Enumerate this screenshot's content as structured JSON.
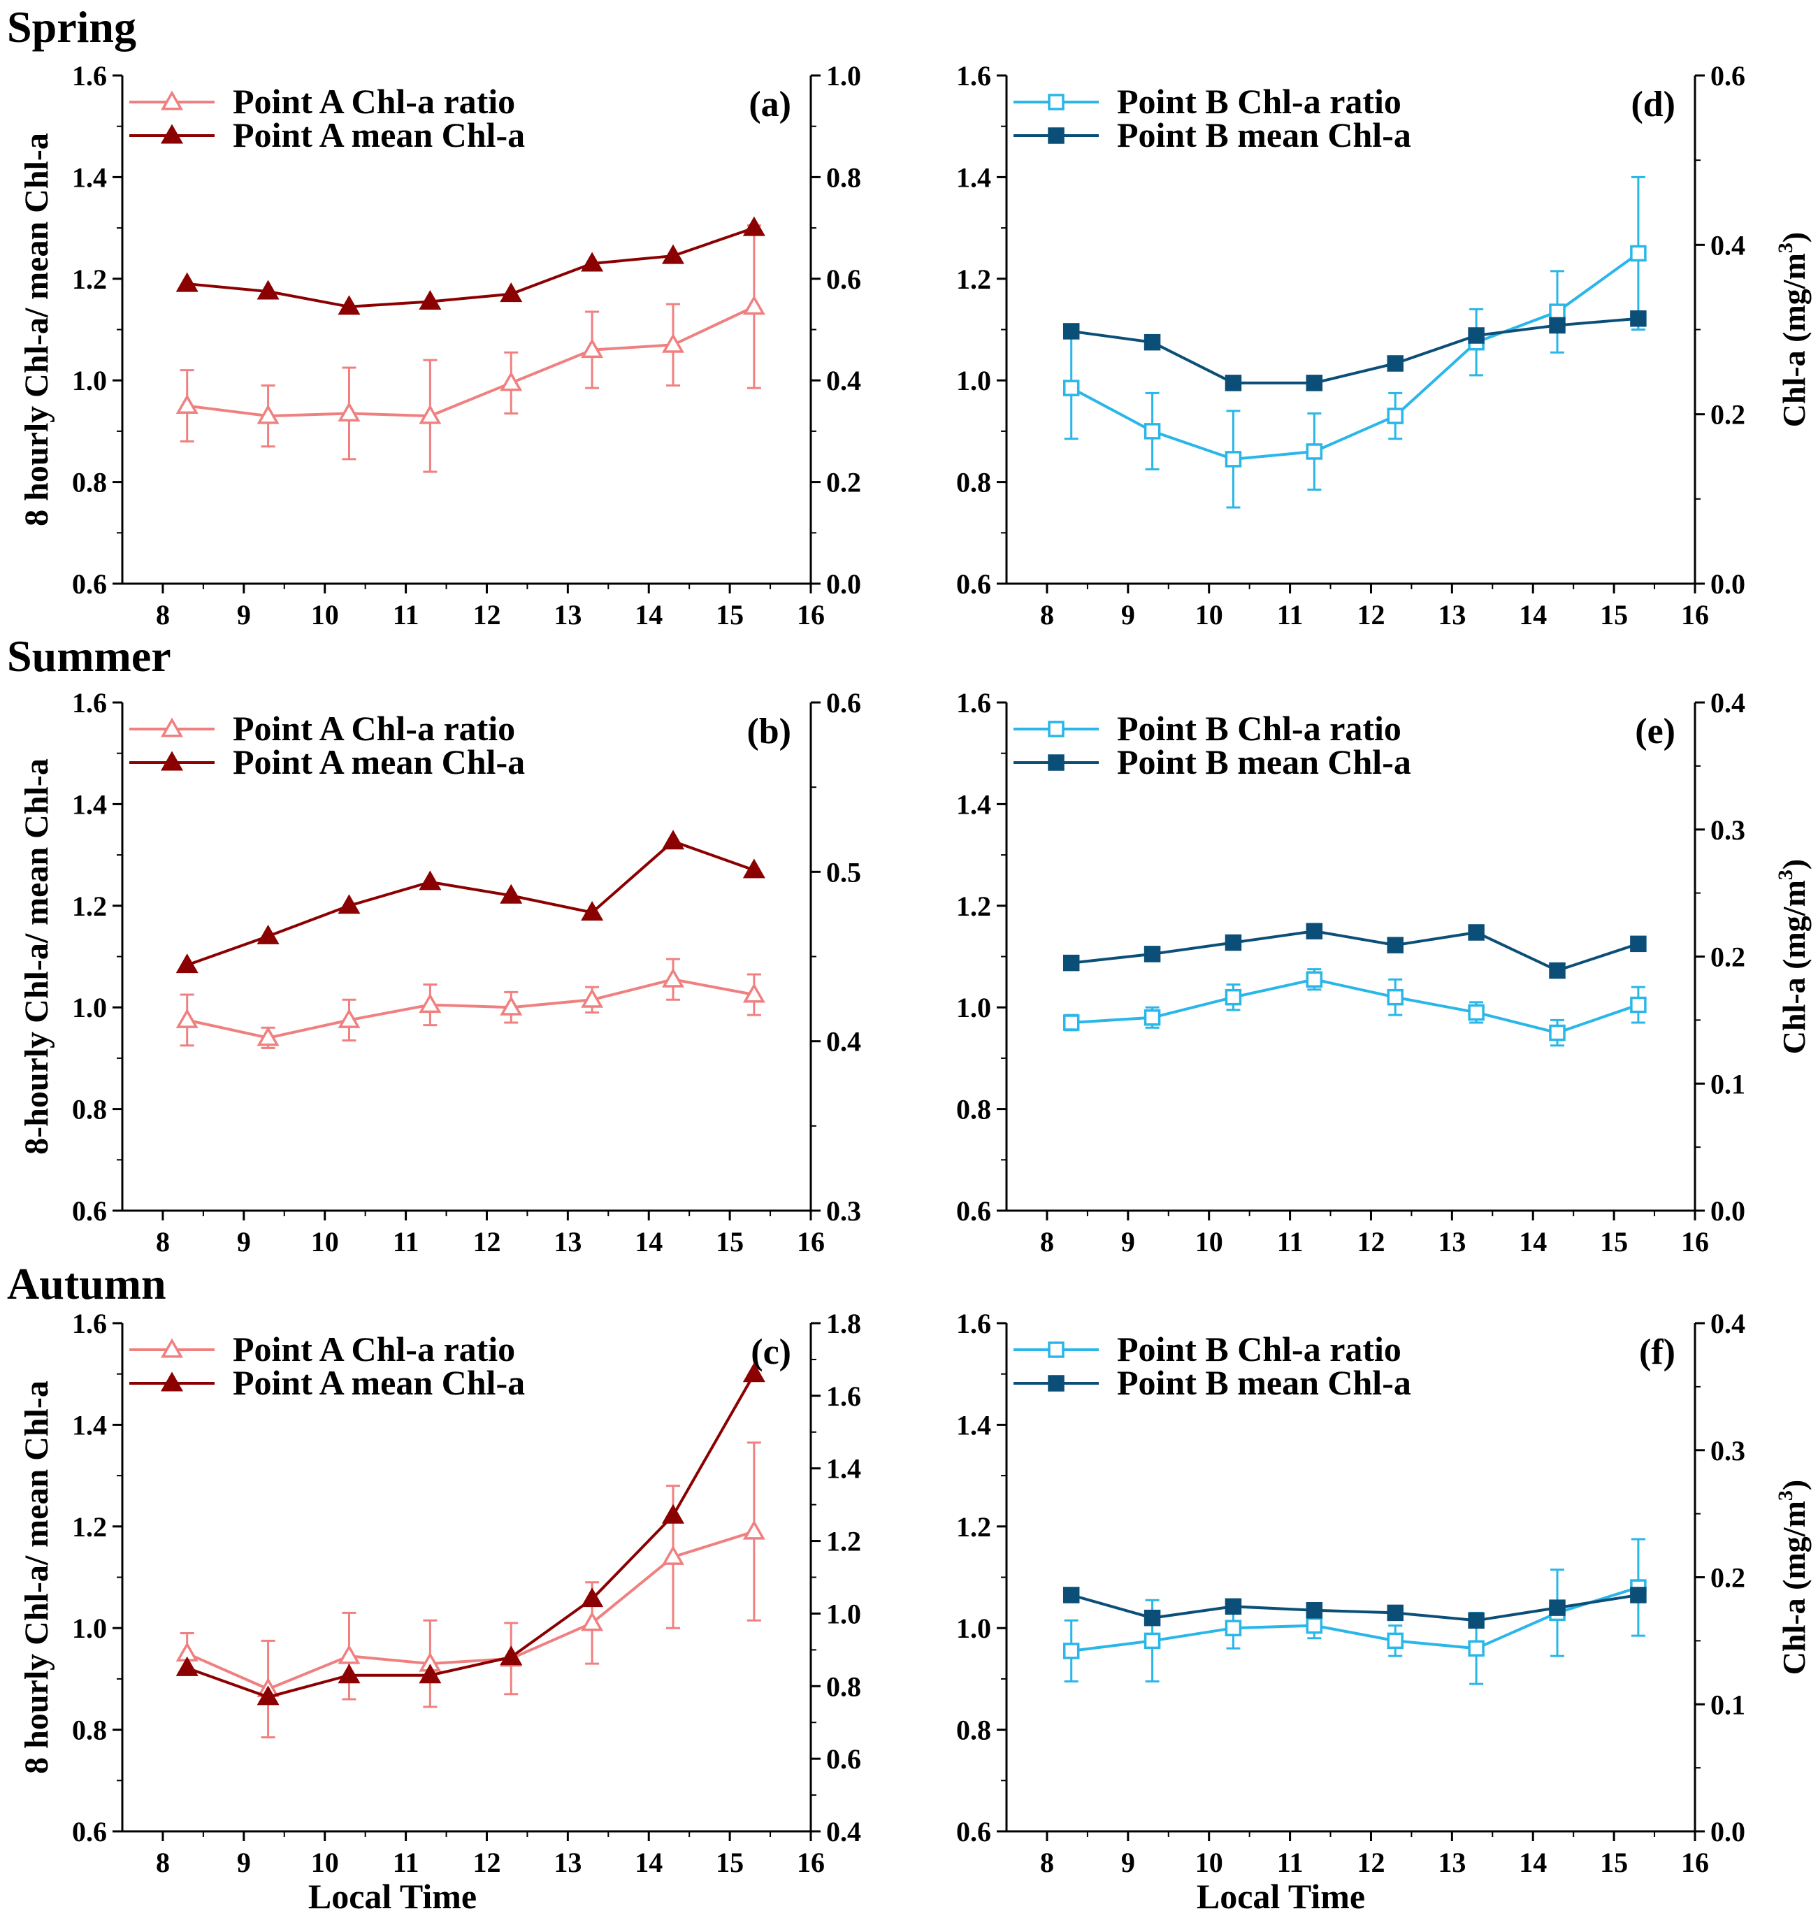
{
  "colors": {
    "a_ratio": "#f08080",
    "a_mean": "#8b0000",
    "b_ratio": "#29b6e8",
    "b_mean": "#0b4f78"
  },
  "seasons": [
    "Spring",
    "Summer",
    "Autumn"
  ],
  "x_title": "Local Time",
  "left_ylabels": [
    "8 hourly Chl-a/ mean Chl-a",
    "8-hourly Chl-a/ mean Chl-a",
    "8 hourly Chl-a/ mean Chl-a"
  ],
  "right_ylabel": "Chl-a (mg/m",
  "right_ylabel_sup": "3",
  "right_ylabel_close": ")",
  "chart_data": [
    {
      "id": "a",
      "type": "line",
      "panel_label": "(a)",
      "point": "A",
      "x": [
        8.3,
        9.3,
        10.3,
        11.3,
        12.3,
        13.3,
        14.3,
        15.3
      ],
      "xlim": [
        7.5,
        16
      ],
      "xticks": [
        8,
        9,
        10,
        11,
        12,
        13,
        14,
        15,
        16
      ],
      "ylim": [
        0.6,
        1.6
      ],
      "yticks": [
        "0.6",
        "0.8",
        "1.0",
        "1.2",
        "1.4",
        "1.6"
      ],
      "y2lim": [
        0.0,
        1.0
      ],
      "y2ticks": [
        "0.0",
        "0.2",
        "0.4",
        "0.6",
        "0.8",
        "1.0"
      ],
      "series": [
        {
          "name": "Point A Chl-a ratio",
          "axis": "left",
          "marker": "triangle-open",
          "color_key": "a_ratio",
          "values": [
            0.95,
            0.93,
            0.935,
            0.93,
            0.995,
            1.06,
            1.07,
            1.145
          ],
          "err": [
            0.07,
            0.06,
            0.09,
            0.11,
            0.06,
            0.075,
            0.08,
            0.16
          ]
        },
        {
          "name": "Point A mean Chl-a",
          "axis": "right",
          "marker": "triangle-filled",
          "color_key": "a_mean",
          "values": [
            0.59,
            0.575,
            0.545,
            0.555,
            0.57,
            0.63,
            0.645,
            0.7
          ]
        }
      ]
    },
    {
      "id": "b",
      "type": "line",
      "panel_label": "(b)",
      "point": "A",
      "x": [
        8.3,
        9.3,
        10.3,
        11.3,
        12.3,
        13.3,
        14.3,
        15.3
      ],
      "xlim": [
        7.5,
        16
      ],
      "xticks": [
        8,
        9,
        10,
        11,
        12,
        13,
        14,
        15,
        16
      ],
      "ylim": [
        0.6,
        1.6
      ],
      "yticks": [
        "0.6",
        "0.8",
        "1.0",
        "1.2",
        "1.4",
        "1.6"
      ],
      "y2lim": [
        0.3,
        0.6
      ],
      "y2ticks": [
        "0.3",
        "0.4",
        "0.5",
        "0.6"
      ],
      "series": [
        {
          "name": "Point A Chl-a ratio",
          "axis": "left",
          "marker": "triangle-open",
          "color_key": "a_ratio",
          "values": [
            0.975,
            0.94,
            0.975,
            1.005,
            1.0,
            1.015,
            1.055,
            1.025
          ],
          "err": [
            0.05,
            0.02,
            0.04,
            0.04,
            0.03,
            0.025,
            0.04,
            0.04
          ]
        },
        {
          "name": "Point A mean Chl-a",
          "axis": "right",
          "marker": "triangle-filled",
          "color_key": "a_mean",
          "values": [
            0.445,
            0.462,
            0.48,
            0.494,
            0.486,
            0.476,
            0.518,
            0.501
          ]
        }
      ]
    },
    {
      "id": "c",
      "type": "line",
      "panel_label": "(c)",
      "point": "A",
      "x": [
        8.3,
        9.3,
        10.3,
        11.3,
        12.3,
        13.3,
        14.3,
        15.3
      ],
      "xlim": [
        7.5,
        16
      ],
      "xticks": [
        8,
        9,
        10,
        11,
        12,
        13,
        14,
        15,
        16
      ],
      "ylim": [
        0.6,
        1.6
      ],
      "yticks": [
        "0.6",
        "0.8",
        "1.0",
        "1.2",
        "1.4",
        "1.6"
      ],
      "y2lim": [
        0.4,
        1.8
      ],
      "y2ticks": [
        "0.4",
        "0.6",
        "0.8",
        "1.0",
        "1.2",
        "1.4",
        "1.6",
        "1.8"
      ],
      "series": [
        {
          "name": "Point A Chl-a ratio",
          "axis": "left",
          "marker": "triangle-open",
          "color_key": "a_ratio",
          "values": [
            0.95,
            0.88,
            0.945,
            0.93,
            0.94,
            1.01,
            1.14,
            1.19
          ],
          "err": [
            0.04,
            0.095,
            0.085,
            0.085,
            0.07,
            0.08,
            0.14,
            0.175
          ]
        },
        {
          "name": "Point A mean Chl-a",
          "axis": "right",
          "marker": "triangle-filled",
          "color_key": "a_mean",
          "values": [
            0.85,
            0.77,
            0.83,
            0.83,
            0.88,
            1.04,
            1.27,
            1.66
          ]
        }
      ]
    },
    {
      "id": "d",
      "type": "line",
      "panel_label": "(d)",
      "point": "B",
      "x": [
        8.3,
        9.3,
        10.3,
        11.3,
        12.3,
        13.3,
        14.3,
        15.3
      ],
      "xlim": [
        7.5,
        16
      ],
      "xticks": [
        8,
        9,
        10,
        11,
        12,
        13,
        14,
        15,
        16
      ],
      "ylim": [
        0.6,
        1.6
      ],
      "yticks": [
        "0.6",
        "0.8",
        "1.0",
        "1.2",
        "1.4",
        "1.6"
      ],
      "y2lim": [
        0.0,
        0.6
      ],
      "y2ticks": [
        "0.0",
        "0.2",
        "0.4",
        "0.6"
      ],
      "series": [
        {
          "name": "Point B Chl-a ratio",
          "axis": "left",
          "marker": "square-open",
          "color_key": "b_ratio",
          "values": [
            0.985,
            0.9,
            0.845,
            0.86,
            0.93,
            1.075,
            1.135,
            1.25
          ],
          "err": [
            0.1,
            0.075,
            0.095,
            0.075,
            0.045,
            0.065,
            0.08,
            0.15
          ]
        },
        {
          "name": "Point B mean Chl-a",
          "axis": "right",
          "marker": "square-filled",
          "color_key": "b_mean",
          "values": [
            0.298,
            0.285,
            0.237,
            0.237,
            0.26,
            0.293,
            0.305,
            0.313
          ]
        }
      ]
    },
    {
      "id": "e",
      "type": "line",
      "panel_label": "(e)",
      "point": "B",
      "x": [
        8.3,
        9.3,
        10.3,
        11.3,
        12.3,
        13.3,
        14.3,
        15.3
      ],
      "xlim": [
        7.5,
        16
      ],
      "xticks": [
        8,
        9,
        10,
        11,
        12,
        13,
        14,
        15,
        16
      ],
      "ylim": [
        0.6,
        1.6
      ],
      "yticks": [
        "0.6",
        "0.8",
        "1.0",
        "1.2",
        "1.4",
        "1.6"
      ],
      "y2lim": [
        0.0,
        0.4
      ],
      "y2ticks": [
        "0.0",
        "0.1",
        "0.2",
        "0.3",
        "0.4"
      ],
      "series": [
        {
          "name": "Point B Chl-a ratio",
          "axis": "left",
          "marker": "square-open",
          "color_key": "b_ratio",
          "values": [
            0.97,
            0.98,
            1.02,
            1.055,
            1.02,
            0.99,
            0.95,
            1.005
          ],
          "err": [
            0.015,
            0.02,
            0.025,
            0.02,
            0.035,
            0.02,
            0.025,
            0.035
          ]
        },
        {
          "name": "Point B mean Chl-a",
          "axis": "right",
          "marker": "square-filled",
          "color_key": "b_mean",
          "values": [
            0.195,
            0.202,
            0.211,
            0.22,
            0.209,
            0.219,
            0.189,
            0.21
          ]
        }
      ]
    },
    {
      "id": "f",
      "type": "line",
      "panel_label": "(f)",
      "point": "B",
      "x": [
        8.3,
        9.3,
        10.3,
        11.3,
        12.3,
        13.3,
        14.3,
        15.3
      ],
      "xlim": [
        7.5,
        16
      ],
      "xticks": [
        8,
        9,
        10,
        11,
        12,
        13,
        14,
        15,
        16
      ],
      "ylim": [
        0.6,
        1.6
      ],
      "yticks": [
        "0.6",
        "0.8",
        "1.0",
        "1.2",
        "1.4",
        "1.6"
      ],
      "y2lim": [
        0.0,
        0.4
      ],
      "y2ticks": [
        "0.0",
        "0.1",
        "0.2",
        "0.3",
        "0.4"
      ],
      "series": [
        {
          "name": "Point B Chl-a ratio",
          "axis": "left",
          "marker": "square-open",
          "color_key": "b_ratio",
          "values": [
            0.955,
            0.975,
            1.0,
            1.005,
            0.975,
            0.96,
            1.03,
            1.08
          ],
          "err": [
            0.06,
            0.08,
            0.04,
            0.025,
            0.03,
            0.07,
            0.085,
            0.095
          ]
        },
        {
          "name": "Point B mean Chl-a",
          "axis": "right",
          "marker": "square-filled",
          "color_key": "b_mean",
          "values": [
            0.186,
            0.168,
            0.177,
            0.174,
            0.172,
            0.166,
            0.176,
            0.186
          ]
        }
      ]
    }
  ]
}
